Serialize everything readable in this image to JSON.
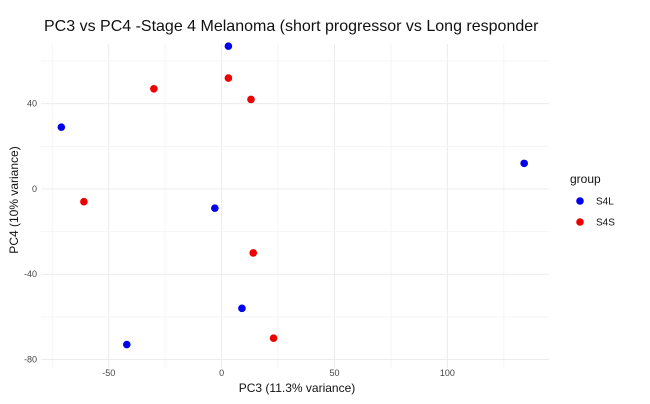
{
  "chart_data": {
    "type": "scatter",
    "title": "PC3 vs PC4 -Stage 4 Melanoma (short progressor vs Long responder",
    "xlabel": "PC3 (11.3% variance)",
    "ylabel": "PC4 (10% variance)",
    "xlim": [
      -80,
      145
    ],
    "ylim": [
      -84,
      68
    ],
    "x_ticks": [
      -50,
      0,
      50,
      100
    ],
    "y_ticks": [
      -80,
      -40,
      0,
      40
    ],
    "grid": true,
    "legend": {
      "title": "group",
      "placement": "right"
    },
    "series": [
      {
        "name": "S4L",
        "color": "#0000ee",
        "points": [
          {
            "x": 3,
            "y": 67
          },
          {
            "x": -71,
            "y": 29
          },
          {
            "x": 134,
            "y": 12
          },
          {
            "x": -3,
            "y": -9
          },
          {
            "x": 9,
            "y": -56
          },
          {
            "x": -42,
            "y": -73
          }
        ]
      },
      {
        "name": "S4S",
        "color": "#ee0000",
        "points": [
          {
            "x": 3,
            "y": 52
          },
          {
            "x": -30,
            "y": 47
          },
          {
            "x": 13,
            "y": 42
          },
          {
            "x": -61,
            "y": -6
          },
          {
            "x": 14,
            "y": -30
          },
          {
            "x": 23,
            "y": -70
          }
        ]
      }
    ]
  }
}
